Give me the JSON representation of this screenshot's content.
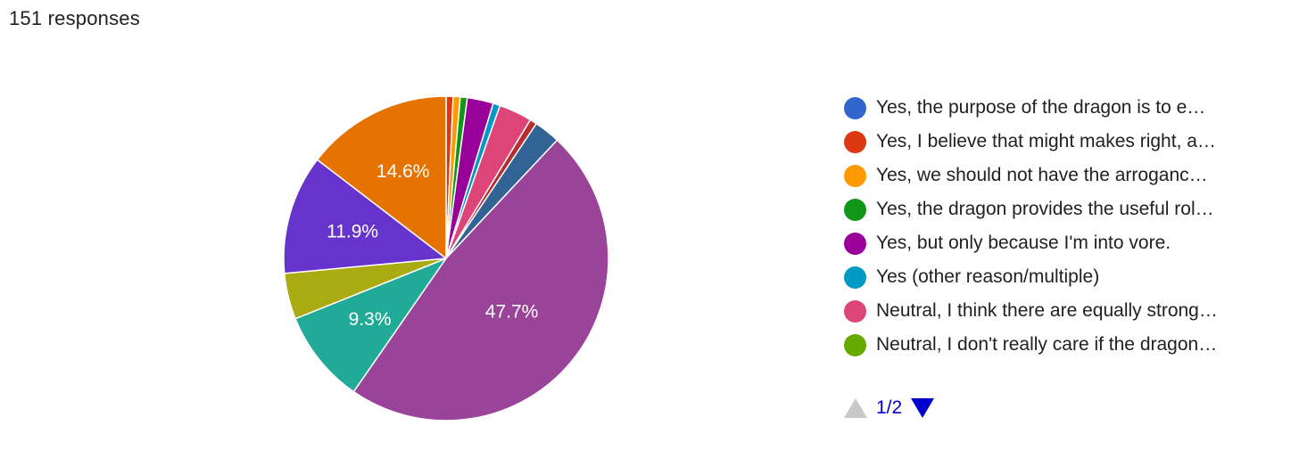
{
  "header": {
    "responses": "151 responses"
  },
  "chart_data": {
    "type": "pie",
    "total_responses": 151,
    "slices": [
      {
        "label": "Yes, the purpose of the dragon is to e…",
        "value": 0.0,
        "color": "#3366cc",
        "display_label": ""
      },
      {
        "label": "Yes, I believe that might makes right, a…",
        "value": 0.7,
        "color": "#dc3912",
        "display_label": ""
      },
      {
        "label": "Yes, we should not have the arroganc…",
        "value": 0.7,
        "color": "#ff9900",
        "display_label": ""
      },
      {
        "label": "Yes, the dragon provides the useful rol…",
        "value": 0.7,
        "color": "#109618",
        "display_label": ""
      },
      {
        "label": "Yes, but only because I'm into vore.",
        "value": 2.6,
        "color": "#990099",
        "display_label": ""
      },
      {
        "label": "Yes (other reason/multiple)",
        "value": 0.7,
        "color": "#0099c6",
        "display_label": ""
      },
      {
        "label": "Neutral, I think there are equally strong…",
        "value": 3.3,
        "color": "#dd4477",
        "display_label": ""
      },
      {
        "label": "Neutral, I don't really care if the dragon…",
        "value": 0.0,
        "color": "#66aa00",
        "display_label": ""
      },
      {
        "label": "",
        "value": 0.7,
        "color": "#b82e2e",
        "display_label": ""
      },
      {
        "label": "",
        "value": 2.6,
        "color": "#316395",
        "display_label": ""
      },
      {
        "label": "",
        "value": 47.7,
        "color": "#994499",
        "display_label": "47.7%"
      },
      {
        "label": "",
        "value": 9.3,
        "color": "#22aa99",
        "display_label": "9.3%"
      },
      {
        "label": "",
        "value": 4.6,
        "color": "#aaaa11",
        "display_label": ""
      },
      {
        "label": "",
        "value": 11.9,
        "color": "#6633cc",
        "display_label": "11.9%"
      },
      {
        "label": "",
        "value": 14.6,
        "color": "#e67300",
        "display_label": "14.6%"
      }
    ],
    "start_angle_deg": 90,
    "direction": "clockwise"
  },
  "legend": {
    "items": [
      {
        "label": "Yes, the purpose of the dragon is to e…",
        "color": "#3366cc"
      },
      {
        "label": "Yes, I believe that might makes right, a…",
        "color": "#dc3912"
      },
      {
        "label": "Yes, we should not have the arroganc…",
        "color": "#ff9900"
      },
      {
        "label": "Yes, the dragon provides the useful rol…",
        "color": "#109618"
      },
      {
        "label": "Yes, but only because I'm into vore.",
        "color": "#990099"
      },
      {
        "label": "Yes (other reason/multiple)",
        "color": "#0099c6"
      },
      {
        "label": "Neutral, I think there are equally strong…",
        "color": "#dd4477"
      },
      {
        "label": "Neutral, I don't really care if the dragon…",
        "color": "#66aa00"
      }
    ],
    "pager": {
      "page": "1/2",
      "prev_icon": "triangle-up-icon",
      "next_icon": "triangle-down-icon"
    }
  }
}
